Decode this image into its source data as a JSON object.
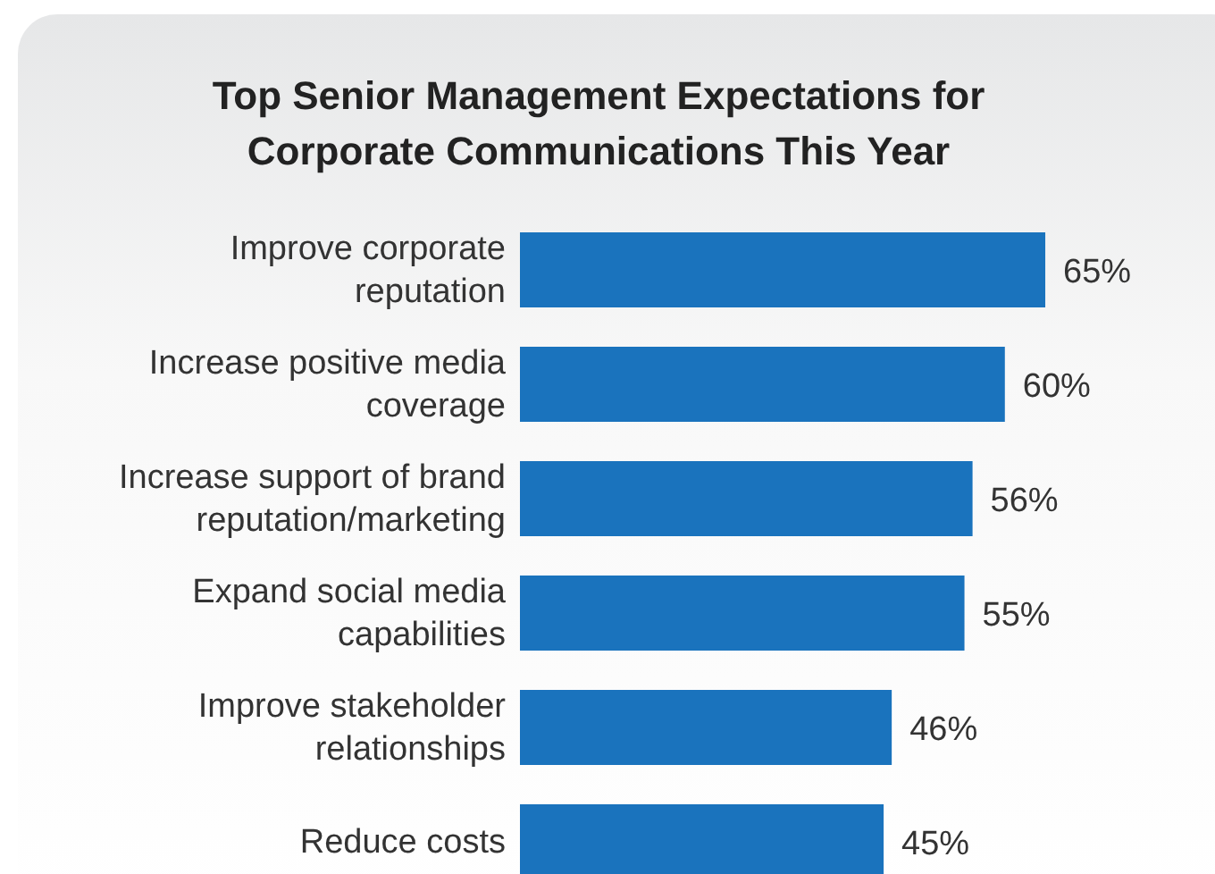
{
  "chart_data": {
    "type": "bar",
    "orientation": "horizontal",
    "title": "Top Senior Management Expectations for Corporate Communications This Year",
    "categories": [
      "Improve corporate reputation",
      "Increase positive media coverage",
      "Increase support of brand reputation/marketing",
      "Expand social media capabilities",
      "Improve stakeholder relationships",
      "Reduce costs"
    ],
    "values": [
      65,
      60,
      56,
      55,
      46,
      45
    ],
    "value_labels": [
      "65%",
      "60%",
      "56%",
      "55%",
      "46%",
      "45%"
    ],
    "color": "#1a73bd",
    "tick_labels": "y"
  }
}
